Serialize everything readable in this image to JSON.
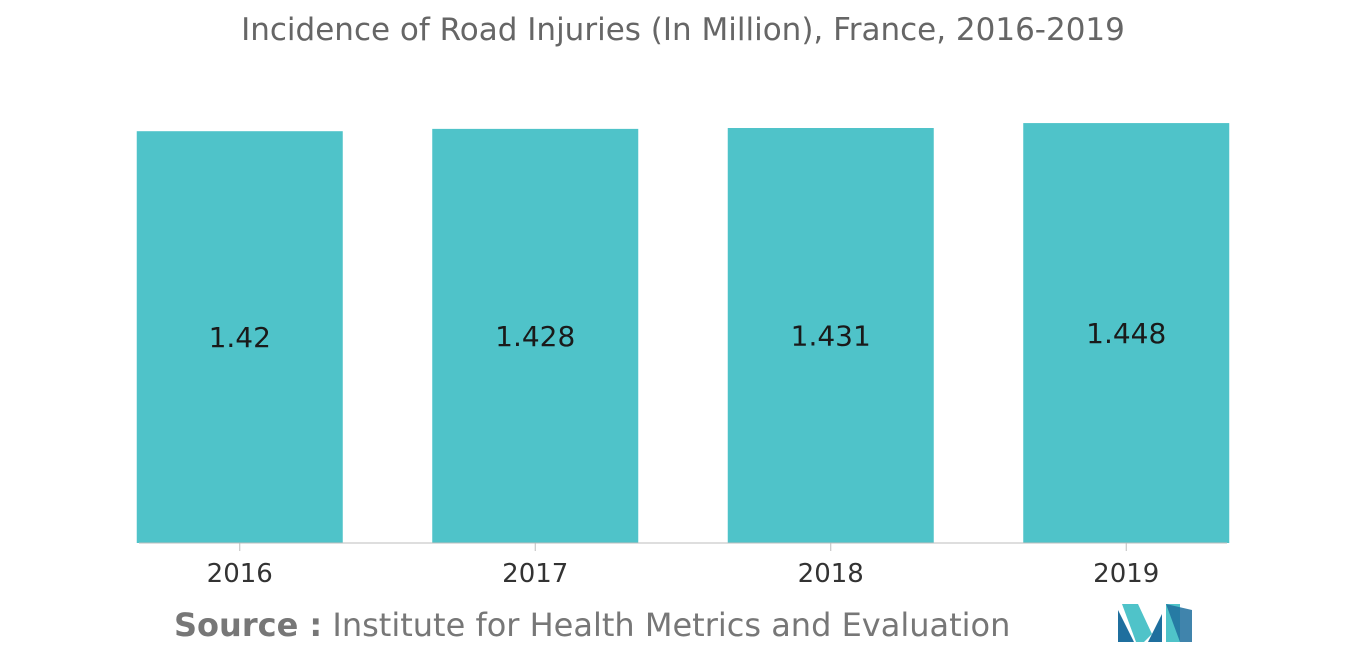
{
  "chart_data": {
    "type": "bar",
    "title": "Incidence of Road Injuries (In Million), France, 2016-2019",
    "categories": [
      "2016",
      "2017",
      "2018",
      "2019"
    ],
    "values": [
      1.42,
      1.428,
      1.431,
      1.448
    ],
    "data_labels": [
      "1.42",
      "1.428",
      "1.431",
      "1.448"
    ],
    "ylim": [
      0,
      1.5
    ],
    "grid": false,
    "legend": "none",
    "bar_color": "#4fc3c9",
    "xlabel": "",
    "ylabel": ""
  },
  "source": {
    "prefix": "Source :",
    "text": "Institute for Health Metrics and Evaluation"
  },
  "logo": {
    "icon": "mordor-intelligence-logo-icon",
    "colors": [
      "#1f6f9e",
      "#4fc3c9"
    ]
  }
}
